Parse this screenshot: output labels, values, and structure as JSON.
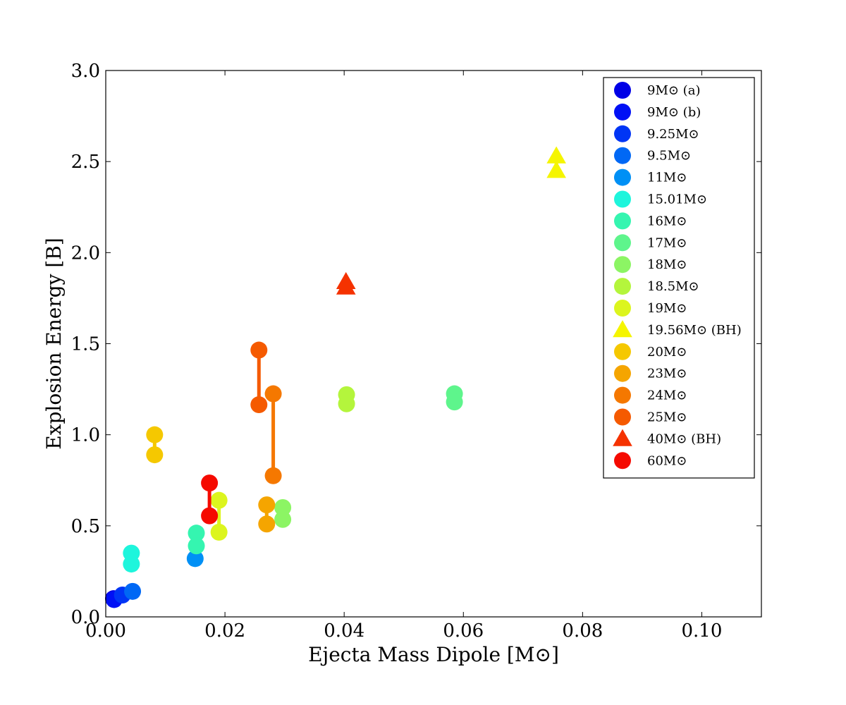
{
  "chart_data": {
    "type": "scatter",
    "title": "",
    "xlabel": "Ejecta Mass Dipole [M⊙]",
    "ylabel": "Explosion Energy [B]",
    "xlim": [
      0,
      0.11
    ],
    "ylim": [
      0,
      3.0
    ],
    "xticks": [
      0.0,
      0.02,
      0.04,
      0.06,
      0.08,
      0.1
    ],
    "xtick_labels": [
      "0.00",
      "0.02",
      "0.04",
      "0.06",
      "0.08",
      "0.10"
    ],
    "yticks": [
      0.0,
      0.5,
      1.0,
      1.5,
      2.0,
      2.5,
      3.0
    ],
    "ytick_labels": [
      "0.0",
      "0.5",
      "1.0",
      "1.5",
      "2.0",
      "2.5",
      "3.0"
    ],
    "grid": false,
    "legend_position": "top-right",
    "series": [
      {
        "name": "9M⊙ (a)",
        "color": "#0000e6",
        "marker": "circle",
        "points": [
          [
            0.0013,
            0.1
          ]
        ]
      },
      {
        "name": "9M⊙ (b)",
        "color": "#0010f5",
        "marker": "circle",
        "points": [
          [
            0.0014,
            0.095
          ]
        ]
      },
      {
        "name": "9.25M⊙",
        "color": "#0035f5",
        "marker": "circle",
        "points": [
          [
            0.0028,
            0.12
          ]
        ]
      },
      {
        "name": "9.5M⊙",
        "color": "#0068f5",
        "marker": "circle",
        "points": [
          [
            0.0045,
            0.14
          ]
        ]
      },
      {
        "name": "11M⊙",
        "color": "#0090f5",
        "marker": "circle",
        "points": [
          [
            0.015,
            0.32
          ]
        ]
      },
      {
        "name": "15.01M⊙",
        "color": "#1ef5dc",
        "marker": "circle",
        "points": [
          [
            0.0043,
            0.35
          ],
          [
            0.0043,
            0.29
          ]
        ],
        "connected": true
      },
      {
        "name": "16M⊙",
        "color": "#35f5b0",
        "marker": "circle",
        "points": [
          [
            0.0152,
            0.46
          ],
          [
            0.0152,
            0.39
          ]
        ],
        "connected": true
      },
      {
        "name": "17M⊙",
        "color": "#5ef58c",
        "marker": "circle",
        "points": [
          [
            0.0585,
            1.225
          ],
          [
            0.0585,
            1.18
          ]
        ],
        "connected": true
      },
      {
        "name": "18M⊙",
        "color": "#8cf564",
        "marker": "circle",
        "points": [
          [
            0.0297,
            0.6
          ],
          [
            0.0297,
            0.535
          ]
        ],
        "connected": true
      },
      {
        "name": "18.5M⊙",
        "color": "#b4f53c",
        "marker": "circle",
        "points": [
          [
            0.0404,
            1.22
          ],
          [
            0.0404,
            1.17
          ]
        ],
        "connected": true
      },
      {
        "name": "19M⊙",
        "color": "#dcf51e",
        "marker": "circle",
        "points": [
          [
            0.019,
            0.64
          ],
          [
            0.019,
            0.465
          ]
        ],
        "connected": true
      },
      {
        "name": "19.56M⊙ (BH)",
        "color": "#f5f500",
        "marker": "triangle",
        "points": [
          [
            0.0756,
            2.53
          ],
          [
            0.0756,
            2.45
          ]
        ],
        "connected": true
      },
      {
        "name": "20M⊙",
        "color": "#f5c800",
        "marker": "circle",
        "points": [
          [
            0.0082,
            1.0
          ],
          [
            0.0082,
            0.89
          ]
        ],
        "connected": true
      },
      {
        "name": "23M⊙",
        "color": "#f5a500",
        "marker": "circle",
        "points": [
          [
            0.027,
            0.615
          ],
          [
            0.027,
            0.51
          ]
        ],
        "connected": true
      },
      {
        "name": "24M⊙",
        "color": "#f57800",
        "marker": "circle",
        "points": [
          [
            0.0281,
            1.225
          ],
          [
            0.0281,
            0.775
          ]
        ],
        "connected": true
      },
      {
        "name": "25M⊙",
        "color": "#f55a00",
        "marker": "circle",
        "points": [
          [
            0.0257,
            1.465
          ],
          [
            0.0257,
            1.165
          ]
        ],
        "connected": true
      },
      {
        "name": "40M⊙ (BH)",
        "color": "#f53200",
        "marker": "triangle",
        "points": [
          [
            0.0403,
            1.84
          ],
          [
            0.0403,
            1.81
          ]
        ],
        "connected": true
      },
      {
        "name": "60M⊙",
        "color": "#f50a00",
        "marker": "circle",
        "points": [
          [
            0.0174,
            0.735
          ],
          [
            0.0174,
            0.555
          ]
        ],
        "connected": true
      }
    ]
  }
}
